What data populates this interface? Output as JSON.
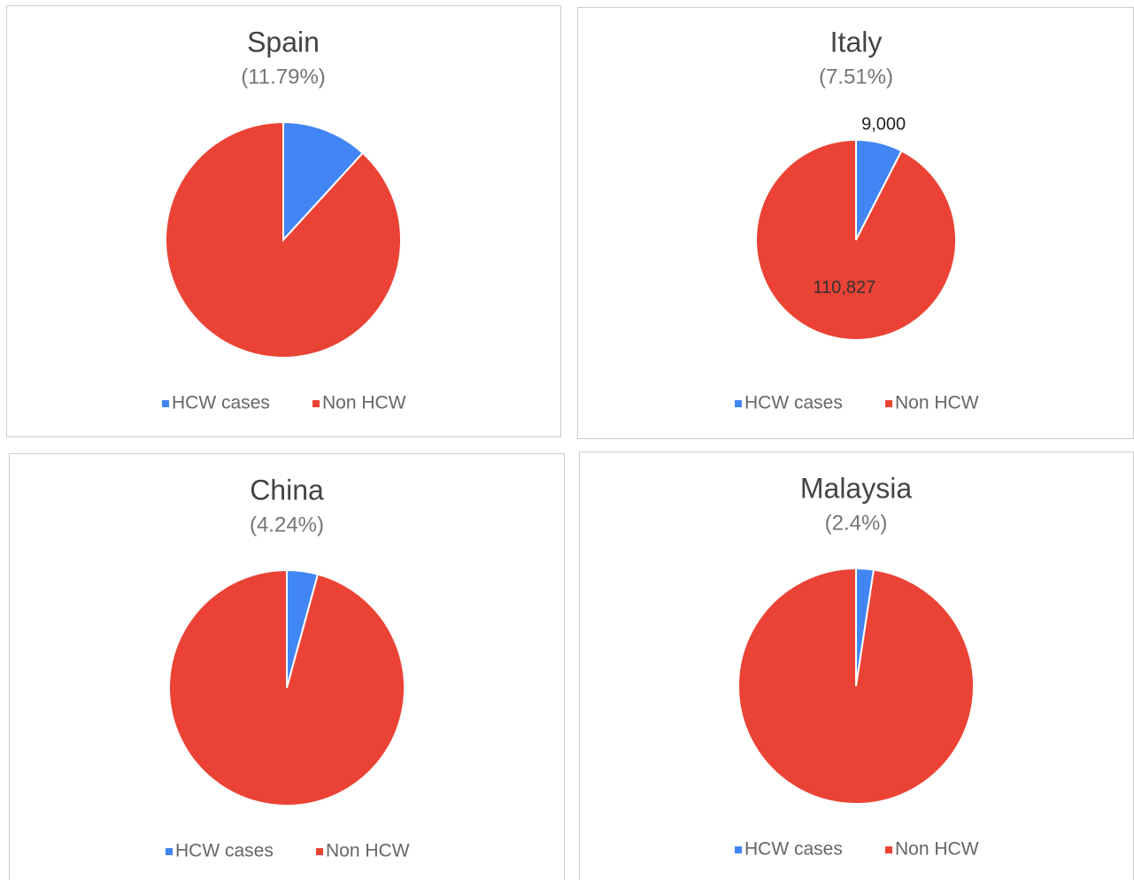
{
  "chart_data": [
    {
      "type": "pie",
      "title": "Spain",
      "subtitle": "(11.79%)",
      "categories": [
        "HCW cases",
        "Non HCW"
      ],
      "values": [
        11.79,
        88.21
      ],
      "colors": [
        "#4285f4",
        "#ea4335"
      ]
    },
    {
      "type": "pie",
      "title": "Italy",
      "subtitle": "(7.51%)",
      "categories": [
        "HCW cases",
        "Non HCW"
      ],
      "values": [
        9000,
        110827
      ],
      "value_labels": [
        "9,000",
        "110,827"
      ],
      "colors": [
        "#4285f4",
        "#ea4335"
      ]
    },
    {
      "type": "pie",
      "title": "China",
      "subtitle": "(4.24%)",
      "categories": [
        "HCW cases",
        "Non HCW"
      ],
      "values": [
        4.24,
        95.76
      ],
      "colors": [
        "#4285f4",
        "#ea4335"
      ]
    },
    {
      "type": "pie",
      "title": "Malaysia",
      "subtitle": "(2.4%)",
      "categories": [
        "HCW cases",
        "Non HCW"
      ],
      "values": [
        2.4,
        97.6
      ],
      "colors": [
        "#4285f4",
        "#ea4335"
      ]
    }
  ]
}
